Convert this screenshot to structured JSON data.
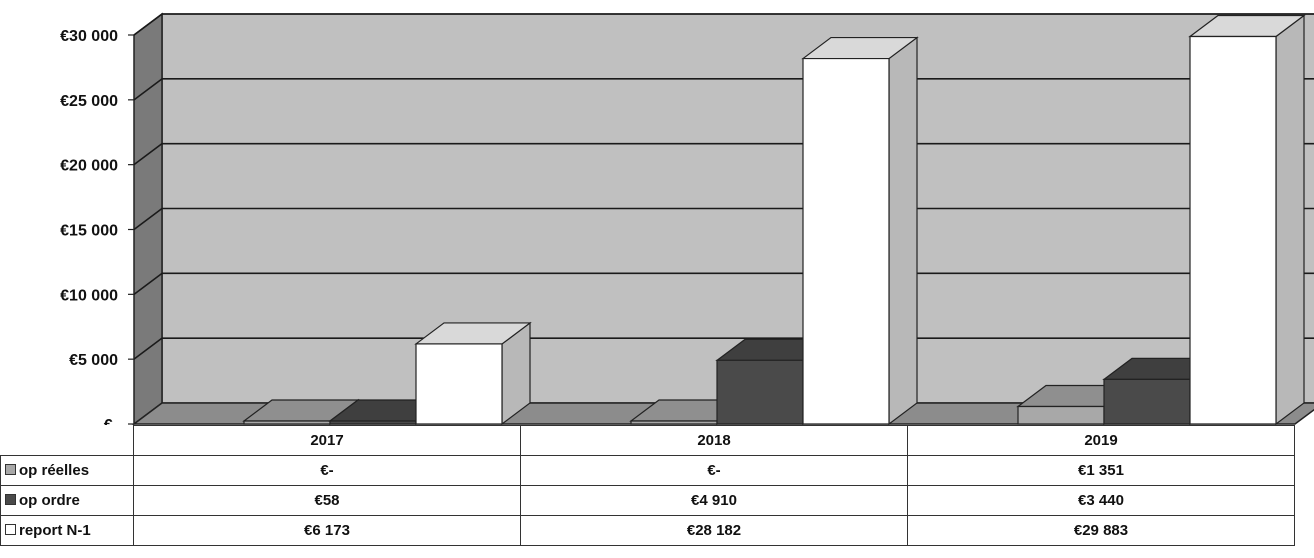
{
  "chart_data": {
    "type": "bar",
    "categories": [
      "2017",
      "2018",
      "2019"
    ],
    "series": [
      {
        "name": "op réelles",
        "values": [
          0,
          0,
          1351
        ],
        "display": [
          "€-",
          "€-",
          "€1 351"
        ],
        "color": "#a8a8a8"
      },
      {
        "name": "op ordre",
        "values": [
          58,
          4910,
          3440
        ],
        "display": [
          "€58",
          "€4 910",
          "€3 440"
        ],
        "color": "#4a4a4a"
      },
      {
        "name": "report N-1",
        "values": [
          6173,
          28182,
          29883
        ],
        "display": [
          "€6 173",
          "€28 182",
          "€29 883"
        ],
        "color": "#ffffff"
      }
    ],
    "yticks": [
      {
        "value": 0,
        "label": "€-"
      },
      {
        "value": 5000,
        "label": "€5 000"
      },
      {
        "value": 10000,
        "label": "€10 000"
      },
      {
        "value": 15000,
        "label": "€15 000"
      },
      {
        "value": 20000,
        "label": "€20 000"
      },
      {
        "value": 25000,
        "label": "€25 000"
      },
      {
        "value": 30000,
        "label": "€30 000"
      }
    ],
    "ylim": [
      0,
      30000
    ],
    "grid": true,
    "legend": "data-table",
    "style": "3d-clustered-column",
    "colors": {
      "wall": "#c0c0c0",
      "floor": "#8c8c8c",
      "side_wall": "#7a7a7a",
      "grid": "#1a1a1a"
    }
  }
}
